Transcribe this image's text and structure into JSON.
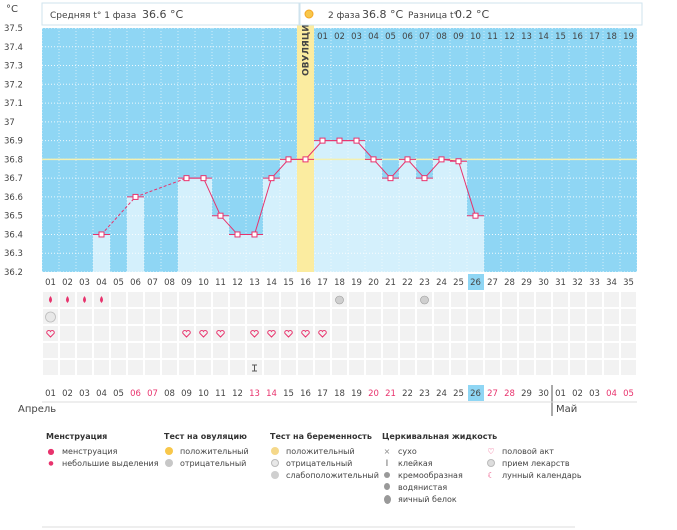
{
  "header": {
    "phase1_label": "Средняя t° 1 фаза",
    "phase1_value": "36.6 °C",
    "phase2_label": "2 фаза",
    "phase2_value": "36.8 °C",
    "diff_label": "Разница t°",
    "diff_value": "0.2 °C"
  },
  "chart_data": {
    "type": "line",
    "ylabel": "°C",
    "ylim": [
      36.2,
      37.5
    ],
    "yticks": [
      "37.5",
      "37.4",
      "37.3",
      "37.2",
      "37.1",
      "37",
      "36.9",
      "36.8",
      "36.7",
      "36.6",
      "36.5",
      "36.4",
      "36.3",
      "36.2"
    ],
    "x": [
      "01",
      "02",
      "03",
      "04",
      "05",
      "06",
      "07",
      "08",
      "09",
      "10",
      "11",
      "12",
      "13",
      "14",
      "15",
      "16",
      "17",
      "18",
      "19",
      "20",
      "21",
      "22",
      "23",
      "24",
      "25",
      "26",
      "27",
      "28",
      "29",
      "30",
      "31",
      "32",
      "33",
      "34",
      "35"
    ],
    "temperatures": [
      null,
      null,
      null,
      36.4,
      null,
      36.6,
      null,
      null,
      36.7,
      36.7,
      36.5,
      36.4,
      36.4,
      36.7,
      36.8,
      36.8,
      36.9,
      36.9,
      36.9,
      36.8,
      36.7,
      36.8,
      36.7,
      36.8,
      36.79,
      36.5,
      null,
      null,
      null,
      null,
      null,
      null,
      null,
      null,
      null
    ],
    "coverline": 36.8,
    "ovulation_day": 16,
    "ovulation_label": "ОВУЛЯЦИЯ",
    "post_ovulation_days": [
      "01",
      "02",
      "03",
      "04",
      "05",
      "06",
      "07",
      "08",
      "09",
      "10",
      "11",
      "12",
      "13",
      "14",
      "15",
      "16",
      "17",
      "18",
      "19"
    ],
    "current_day": "26",
    "dates": [
      "01",
      "02",
      "03",
      "04",
      "05",
      "06",
      "07",
      "08",
      "09",
      "10",
      "11",
      "12",
      "13",
      "14",
      "15",
      "16",
      "17",
      "18",
      "19",
      "20",
      "21",
      "22",
      "23",
      "24",
      "25",
      "26",
      "27",
      "28",
      "29",
      "30",
      "01",
      "02",
      "03",
      "04",
      "05"
    ],
    "weekend_dates": [
      6,
      7,
      13,
      14,
      20,
      21,
      27,
      28,
      34,
      35
    ],
    "months": [
      "Апрель",
      "Май"
    ],
    "marks": {
      "menstruation_days": [
        1,
        2,
        3,
        4
      ],
      "ovulation_test_negative_days": [
        18,
        23
      ],
      "medication_days": [
        1
      ],
      "intercourse_days": [
        1,
        9,
        10,
        11,
        13,
        14,
        15,
        16,
        17
      ],
      "sticky_fluid_days": [
        13
      ]
    },
    "colors": {
      "sky": "#8fd6f4",
      "bar": "#d4f0fc",
      "ovulation": "#fbeca0",
      "line": "#e8336d",
      "coverline": "#f4f0b0",
      "today": "#8fd6f4"
    }
  },
  "legend": {
    "menstruation": {
      "title": "Менструация",
      "items": [
        "менструация",
        "небольшие выделения"
      ]
    },
    "ovulation_test": {
      "title": "Тест на овуляцию",
      "items": [
        "положительный",
        "отрицательный"
      ]
    },
    "pregnancy_test": {
      "title": "Тест на беременность",
      "items": [
        "положительный",
        "отрицательный",
        "слабоположительный"
      ]
    },
    "cervical_fluid": {
      "title": "Церкивальная жидкость",
      "items": [
        "сухо",
        "клейкая",
        "кремообразная",
        "водянистая",
        "яичный белок"
      ]
    },
    "other": {
      "items": [
        "половой акт",
        "прием лекарств",
        "лунный календарь"
      ]
    }
  }
}
